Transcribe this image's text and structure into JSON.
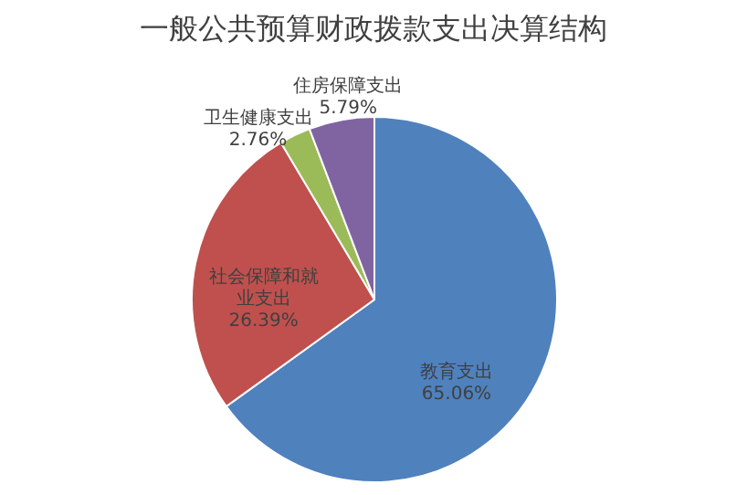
{
  "chart_data": {
    "type": "pie",
    "title": "一般公共预算财政拨款支出决算结构",
    "categories": [
      "教育支出",
      "社会保障和就业支出",
      "卫生健康支出",
      "住房保障支出"
    ],
    "values": [
      65.06,
      26.39,
      2.76,
      5.79
    ],
    "value_labels": [
      "65.06%",
      "26.39%",
      "2.76%",
      "5.79%"
    ],
    "colors": [
      "#4f81bd",
      "#c0504d",
      "#9bbb59",
      "#8064a2"
    ],
    "legend": false
  }
}
